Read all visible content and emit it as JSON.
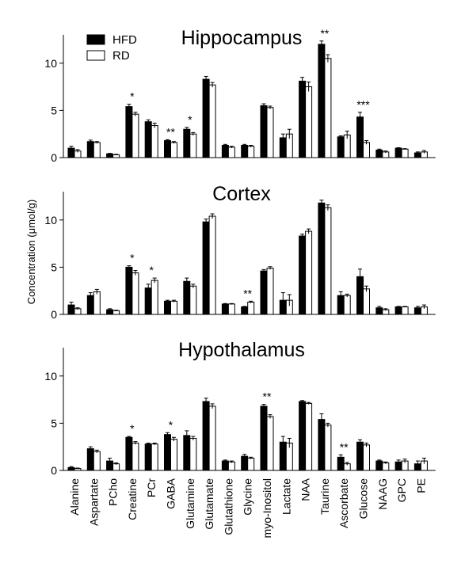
{
  "chart_data": {
    "type": "bar",
    "ylabel": "Concentration (μmol/g)",
    "legend": {
      "placement": "top-left",
      "entries": [
        {
          "name": "HFD",
          "color": "#000000"
        },
        {
          "name": "RD",
          "color": "#ffffff"
        }
      ]
    },
    "categories": [
      "Alanine",
      "Aspartate",
      "PCho",
      "Creatine",
      "PCr",
      "GABA",
      "Glutamine",
      "Glutamate",
      "Glutathione",
      "Glycine",
      "myo-Inositol",
      "Lactate",
      "NAA",
      "Taurine",
      "Ascorbate",
      "Glucose",
      "NAAG",
      "GPC",
      "PE"
    ],
    "ylim": [
      0,
      13
    ],
    "yticks": [
      0,
      5,
      10
    ],
    "panels": [
      {
        "title": "Hippocampus",
        "series": [
          {
            "name": "HFD",
            "values": [
              1.0,
              1.7,
              0.4,
              5.4,
              3.8,
              1.8,
              3.0,
              8.3,
              1.3,
              1.3,
              5.5,
              2.1,
              8.1,
              12.0,
              2.2,
              4.3,
              0.8,
              1.0,
              0.5
            ],
            "errors": [
              0.2,
              0.15,
              0.05,
              0.25,
              0.2,
              0.1,
              0.2,
              0.3,
              0.1,
              0.1,
              0.2,
              0.4,
              0.4,
              0.35,
              0.1,
              0.5,
              0.1,
              0.05,
              0.1
            ]
          },
          {
            "name": "RD",
            "values": [
              0.7,
              1.6,
              0.3,
              4.6,
              3.4,
              1.6,
              2.5,
              7.7,
              1.1,
              1.2,
              5.3,
              2.5,
              7.5,
              10.5,
              2.4,
              1.6,
              0.6,
              0.9,
              0.6
            ],
            "errors": [
              0.15,
              0.1,
              0.05,
              0.2,
              0.25,
              0.1,
              0.15,
              0.25,
              0.1,
              0.1,
              0.15,
              0.5,
              0.5,
              0.4,
              0.4,
              0.2,
              0.1,
              0.05,
              0.15
            ]
          }
        ],
        "annotations": [
          {
            "category": "Creatine",
            "text": "*"
          },
          {
            "category": "GABA",
            "text": "**"
          },
          {
            "category": "Glutamine",
            "text": "*"
          },
          {
            "category": "Taurine",
            "text": "**"
          },
          {
            "category": "Glucose",
            "text": "***"
          }
        ]
      },
      {
        "title": "Cortex",
        "series": [
          {
            "name": "HFD",
            "values": [
              1.0,
              2.0,
              0.5,
              5.0,
              2.8,
              1.4,
              3.5,
              9.8,
              1.1,
              0.8,
              4.6,
              1.5,
              8.3,
              11.8,
              2.0,
              4.0,
              0.7,
              0.8,
              0.7
            ],
            "errors": [
              0.3,
              0.3,
              0.1,
              0.15,
              0.4,
              0.1,
              0.35,
              0.3,
              0.05,
              0.05,
              0.15,
              0.8,
              0.2,
              0.3,
              0.4,
              0.8,
              0.15,
              0.05,
              0.15
            ]
          },
          {
            "name": "RD",
            "values": [
              0.6,
              2.4,
              0.4,
              4.4,
              3.6,
              1.4,
              3.0,
              10.4,
              1.1,
              1.3,
              4.9,
              1.5,
              8.8,
              11.3,
              2.0,
              2.7,
              0.5,
              0.8,
              0.8
            ],
            "errors": [
              0.1,
              0.25,
              0.05,
              0.25,
              0.25,
              0.1,
              0.2,
              0.25,
              0.05,
              0.1,
              0.15,
              0.6,
              0.25,
              0.3,
              0.15,
              0.3,
              0.1,
              0.05,
              0.2
            ]
          }
        ],
        "annotations": [
          {
            "category": "Creatine",
            "text": "*"
          },
          {
            "category": "PCr",
            "text": "*"
          },
          {
            "category": "Glycine",
            "text": "**"
          }
        ]
      },
      {
        "title": "Hypothalamus",
        "series": [
          {
            "name": "HFD",
            "values": [
              0.3,
              2.3,
              1.0,
              3.5,
              2.8,
              3.8,
              3.7,
              7.3,
              1.0,
              1.5,
              6.8,
              3.0,
              7.3,
              5.4,
              1.4,
              3.0,
              1.0,
              0.9,
              0.7
            ],
            "errors": [
              0.1,
              0.2,
              0.3,
              0.1,
              0.1,
              0.2,
              0.5,
              0.35,
              0.1,
              0.2,
              0.2,
              0.6,
              0.1,
              0.6,
              0.25,
              0.25,
              0.1,
              0.2,
              0.3
            ]
          },
          {
            "name": "RD",
            "values": [
              0.2,
              2.0,
              0.7,
              2.9,
              2.8,
              3.3,
              3.4,
              6.8,
              0.9,
              1.3,
              5.7,
              2.9,
              7.1,
              4.8,
              0.7,
              2.7,
              0.8,
              1.0,
              1.0
            ],
            "errors": [
              0.05,
              0.15,
              0.1,
              0.15,
              0.1,
              0.2,
              0.2,
              0.25,
              0.1,
              0.1,
              0.2,
              0.5,
              0.1,
              0.2,
              0.15,
              0.2,
              0.1,
              0.2,
              0.3
            ]
          }
        ],
        "annotations": [
          {
            "category": "Creatine",
            "text": "*"
          },
          {
            "category": "GABA",
            "text": "*"
          },
          {
            "category": "myo-Inositol",
            "text": "**"
          },
          {
            "category": "Ascorbate",
            "text": "**"
          }
        ]
      }
    ]
  }
}
